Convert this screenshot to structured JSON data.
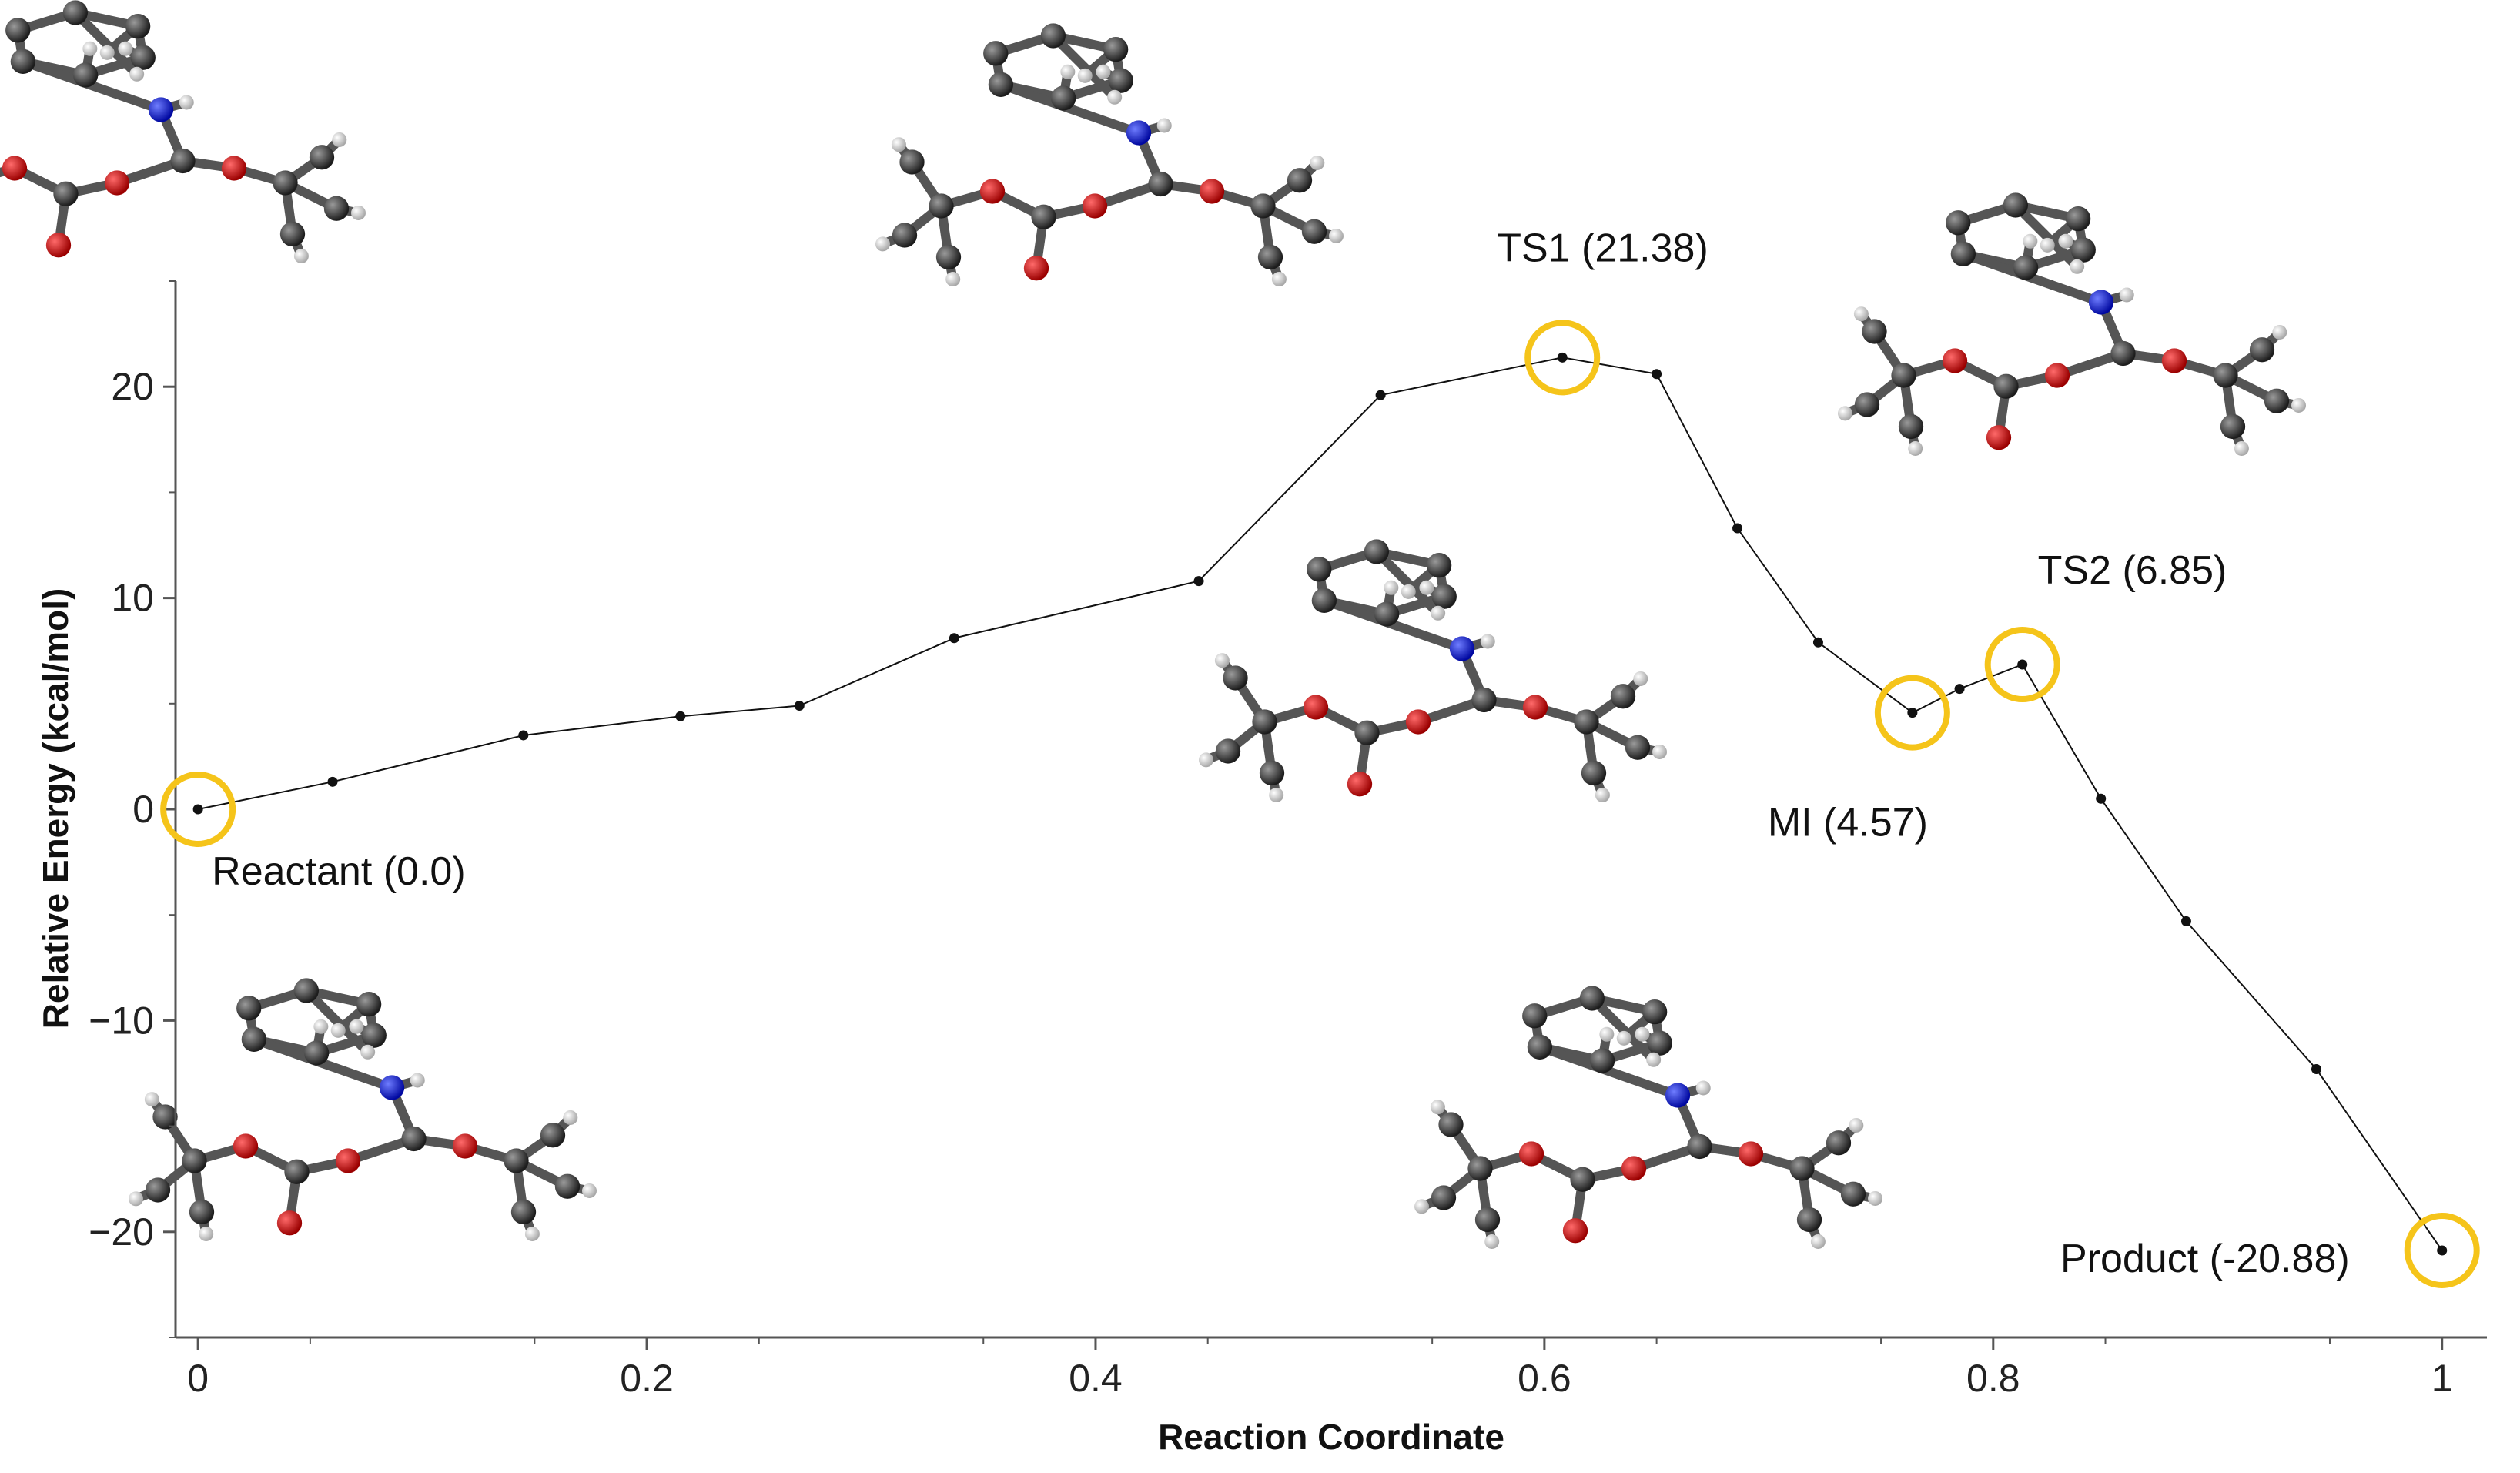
{
  "chart_data": {
    "type": "line",
    "title": "",
    "xlabel": "Reaction Coordinate",
    "ylabel": "Relative Energy (kcal/mol)",
    "xlim": [
      -0.01,
      1.02
    ],
    "ylim": [
      -25,
      25
    ],
    "x_ticks": [
      "0",
      "0.2",
      "0.4",
      "0.6",
      "0.8",
      "1"
    ],
    "y_ticks": [
      "20",
      "10",
      "0",
      "−10",
      "−20"
    ],
    "grid": false,
    "series": [
      {
        "x": [
          0,
          0.06,
          0.145,
          0.215,
          0.268,
          0.337,
          0.446,
          0.527,
          0.608,
          0.65,
          0.686,
          0.722,
          0.764,
          0.785,
          0.813,
          0.848,
          0.886,
          0.944,
          1.0
        ],
        "y": [
          0.0,
          1.3,
          3.5,
          4.4,
          4.9,
          8.1,
          10.8,
          19.6,
          21.38,
          20.6,
          13.3,
          7.9,
          4.57,
          5.7,
          6.85,
          0.5,
          -5.3,
          -12.3,
          -20.88
        ],
        "color": "#111111"
      }
    ],
    "highlights": [
      {
        "label": "Reactant (0.0)",
        "x": 0.0,
        "y": 0.0
      },
      {
        "label": "TS1 (21.38)",
        "x": 0.608,
        "y": 21.38
      },
      {
        "label": "MI (4.57)",
        "x": 0.764,
        "y": 4.57
      },
      {
        "label": "TS2 (6.85)",
        "x": 0.813,
        "y": 6.85
      },
      {
        "label": "Product (-20.88)",
        "x": 1.0,
        "y": -20.88
      }
    ],
    "highlight_color": "#f5c41a"
  }
}
